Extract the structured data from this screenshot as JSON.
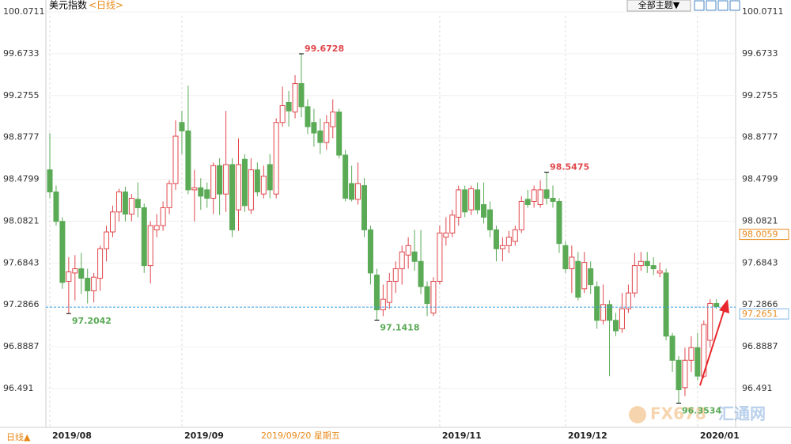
{
  "chart_data": {
    "type": "candlestick",
    "title": "美元指数",
    "period": "<日线>",
    "toolbar_button": "全部主题▼",
    "period_selector": "日线▲",
    "crosshair_label": "2019/09/20 星期五",
    "crosshair_value": 98.0059,
    "last_price": 97.2651,
    "watermark": [
      "FX678",
      "汇通网"
    ],
    "up_color": "#e0474c",
    "down_color": "#5aaa56",
    "ylim": [
      96.1227,
      100.184
    ],
    "yticks": [
      100.0711,
      99.6733,
      99.2755,
      98.8777,
      98.4799,
      98.0821,
      97.6843,
      97.2866,
      96.8887,
      96.491
    ],
    "annotations": [
      99.6728,
      97.2042,
      97.1418,
      98.5475,
      96.3534
    ],
    "categories": [
      "2019/08",
      null,
      null,
      null,
      null,
      null,
      null,
      null,
      null,
      null,
      null,
      null,
      null,
      null,
      null,
      null,
      null,
      null,
      null,
      null,
      null,
      "2019/09",
      null,
      null,
      null,
      null,
      null,
      null,
      null,
      null,
      null,
      null,
      null,
      null,
      null,
      null,
      null,
      null,
      null,
      null,
      null,
      null,
      null,
      null,
      null,
      null,
      null,
      null,
      null,
      null,
      null,
      null,
      null,
      null,
      null,
      null,
      null,
      null,
      null,
      null,
      null,
      null,
      "2019/11",
      null,
      null,
      null,
      null,
      null,
      null,
      null,
      null,
      null,
      null,
      null,
      null,
      null,
      null,
      null,
      null,
      null,
      null,
      null,
      "2019/12",
      null,
      null,
      null,
      null,
      null,
      null,
      null,
      null,
      null,
      null,
      null,
      null,
      null,
      null,
      null,
      null,
      null,
      null,
      null,
      null,
      "2020/01",
      null,
      null,
      null
    ],
    "open": [
      98.57,
      98.36,
      98.08,
      97.51,
      97.59,
      97.63,
      97.54,
      97.42,
      97.54,
      97.82,
      97.98,
      98.17,
      98.36,
      98.15,
      98.29,
      98.21,
      97.66,
      98.0,
      98.04,
      98.21,
      98.44,
      99.02,
      98.94,
      98.38,
      98.4,
      98.38,
      98.3,
      98.61,
      98.34,
      98.62,
      98.19,
      98.67,
      98.19,
      98.57,
      98.34,
      98.62,
      98.34,
      99.02,
      99.21,
      99.12,
      99.39,
      99.17,
      99.02,
      98.94,
      98.83,
      98.98,
      99.12,
      98.71,
      98.44,
      98.29,
      98.42,
      98.0,
      97.57,
      97.24,
      97.31,
      97.51,
      97.63,
      97.76,
      97.79,
      97.7,
      97.46,
      97.21,
      97.51,
      97.93,
      97.97,
      98.12,
      98.38,
      98.19,
      98.38,
      98.24,
      98.19,
      98.0,
      97.82,
      97.85,
      97.89,
      98.0,
      98.29,
      98.27,
      98.24,
      98.38,
      98.3,
      98.27,
      97.85,
      97.63,
      97.7,
      97.44,
      97.63,
      97.46,
      97.14,
      97.29,
      97.14,
      97.06,
      97.25,
      97.4,
      97.66,
      97.7,
      97.66,
      97.59,
      97.59,
      96.99,
      96.76,
      96.5,
      96.76,
      96.88,
      96.61,
      96.95,
      97.3
    ],
    "high": [
      98.92,
      98.42,
      98.12,
      97.74,
      97.76,
      97.78,
      97.63,
      97.59,
      97.85,
      98.04,
      98.23,
      98.39,
      98.41,
      98.34,
      98.45,
      98.25,
      98.08,
      98.15,
      98.27,
      98.47,
      99.04,
      99.13,
      99.37,
      98.57,
      98.49,
      98.45,
      98.64,
      98.68,
      99.13,
      98.68,
      98.87,
      98.72,
      98.68,
      98.64,
      98.61,
      98.72,
      99.06,
      99.36,
      99.32,
      99.47,
      99.6728,
      99.24,
      99.15,
      99.06,
      99.09,
      99.24,
      99.15,
      98.76,
      98.61,
      98.64,
      98.49,
      98.04,
      97.63,
      97.48,
      97.59,
      97.7,
      97.85,
      97.93,
      98.0,
      98.0,
      97.51,
      97.55,
      98.04,
      98.12,
      98.19,
      98.42,
      98.42,
      98.42,
      98.45,
      98.45,
      98.27,
      98.04,
      97.93,
      97.99,
      98.04,
      98.32,
      98.38,
      98.42,
      98.47,
      98.5475,
      98.42,
      98.3,
      97.89,
      97.85,
      97.79,
      97.79,
      97.7,
      97.51,
      97.48,
      97.33,
      97.21,
      97.4,
      97.48,
      97.78,
      97.79,
      97.79,
      97.74,
      97.69,
      97.63,
      97.02,
      96.8,
      96.88,
      96.99,
      97.02,
      97.14,
      97.34,
      97.34
    ],
    "low": [
      98.3,
      98.04,
      97.44,
      97.2042,
      97.33,
      97.39,
      97.3,
      97.31,
      97.42,
      97.7,
      97.93,
      98.08,
      98.08,
      98.08,
      98.12,
      97.59,
      97.49,
      97.93,
      97.99,
      98.15,
      98.38,
      98.72,
      98.34,
      98.08,
      98.19,
      98.21,
      98.15,
      98.14,
      98.17,
      97.93,
      97.99,
      98.17,
      98.15,
      98.32,
      98.3,
      98.3,
      98.3,
      98.98,
      98.98,
      99.06,
      99.07,
      98.91,
      98.79,
      98.72,
      98.76,
      98.87,
      98.68,
      98.27,
      98.27,
      98.24,
      97.93,
      97.48,
      97.1418,
      97.18,
      97.25,
      97.4,
      97.48,
      97.63,
      97.61,
      97.39,
      97.18,
      97.18,
      97.48,
      97.85,
      97.93,
      98.04,
      98.12,
      98.14,
      98.15,
      98.06,
      97.93,
      97.7,
      97.7,
      97.78,
      97.85,
      97.97,
      98.21,
      98.21,
      98.21,
      98.24,
      98.21,
      97.78,
      97.59,
      97.4,
      97.33,
      97.4,
      97.39,
      97.06,
      97.1,
      96.61,
      96.99,
      97.02,
      97.21,
      97.36,
      97.61,
      97.59,
      97.57,
      97.55,
      96.95,
      96.65,
      96.3534,
      96.42,
      96.65,
      96.57,
      96.59,
      96.88,
      97.25
    ],
    "close": [
      98.36,
      98.08,
      97.5,
      97.6,
      97.63,
      97.54,
      97.42,
      97.55,
      97.82,
      97.98,
      98.17,
      98.36,
      98.15,
      98.3,
      98.21,
      97.66,
      98.04,
      98.04,
      98.21,
      98.44,
      98.89,
      98.94,
      98.38,
      98.4,
      98.32,
      98.3,
      98.61,
      98.34,
      98.62,
      98.0,
      98.62,
      98.23,
      98.57,
      98.36,
      98.51,
      98.38,
      99.02,
      99.18,
      99.13,
      99.39,
      99.17,
      98.98,
      98.92,
      98.83,
      99.02,
      99.12,
      98.71,
      98.3,
      98.29,
      98.44,
      98.0,
      97.59,
      97.24,
      97.34,
      97.51,
      97.63,
      97.79,
      97.85,
      97.7,
      97.46,
      97.3,
      97.51,
      97.97,
      97.97,
      98.14,
      98.38,
      98.17,
      98.39,
      98.19,
      98.12,
      98.0,
      97.82,
      97.85,
      97.93,
      98.0,
      98.27,
      98.24,
      98.38,
      98.38,
      98.3,
      98.27,
      97.87,
      97.63,
      97.74,
      97.36,
      97.69,
      97.48,
      97.14,
      97.29,
      97.14,
      97.04,
      97.25,
      97.4,
      97.66,
      97.7,
      97.66,
      97.63,
      97.61,
      96.99,
      96.76,
      96.48,
      96.76,
      96.88,
      96.61,
      97.1,
      97.3,
      97.27
    ]
  }
}
